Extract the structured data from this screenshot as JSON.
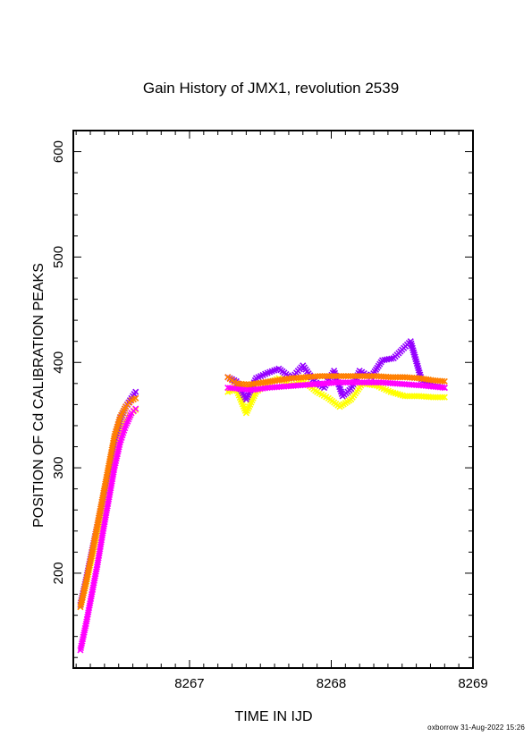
{
  "chart_data": {
    "type": "scatter",
    "title": "Gain History of JMX1, revolution 2539",
    "xlabel": "TIME IN IJD",
    "ylabel": "POSITION OF Cd CALIBRATION PEAKS",
    "xlim": [
      8266.18,
      8269.0
    ],
    "ylim": [
      110,
      620
    ],
    "xticks": [
      8267,
      8268,
      8269
    ],
    "xtick_labels": [
      "8267",
      "8268",
      "8269"
    ],
    "yticks": [
      200,
      300,
      400,
      500,
      600
    ],
    "ytick_labels": [
      "200",
      "300",
      "400",
      "500",
      "600"
    ],
    "grid": false,
    "legend": "none",
    "marker": "x",
    "series": [
      {
        "color": "#ffff00",
        "points": [
          [
            8266.23,
            168
          ],
          [
            8266.27,
            190
          ],
          [
            8266.31,
            214
          ],
          [
            8266.35,
            238
          ],
          [
            8266.39,
            262
          ],
          [
            8266.43,
            286
          ],
          [
            8266.47,
            312
          ],
          [
            8266.51,
            334
          ],
          [
            8266.55,
            346
          ],
          [
            8266.59,
            352
          ],
          [
            8266.62,
            355
          ],
          [
            8267.27,
            372
          ],
          [
            8267.33,
            375
          ],
          [
            8267.4,
            352
          ],
          [
            8267.47,
            372
          ],
          [
            8267.55,
            380
          ],
          [
            8267.63,
            385
          ],
          [
            8267.72,
            378
          ],
          [
            8267.8,
            383
          ],
          [
            8267.9,
            372
          ],
          [
            8267.98,
            366
          ],
          [
            8268.06,
            358
          ],
          [
            8268.14,
            365
          ],
          [
            8268.22,
            380
          ],
          [
            8268.32,
            378
          ],
          [
            8268.42,
            372
          ],
          [
            8268.52,
            368
          ],
          [
            8268.62,
            368
          ],
          [
            8268.72,
            367
          ],
          [
            8268.8,
            367
          ]
        ]
      },
      {
        "color": "#9400ff",
        "points": [
          [
            8266.23,
            170
          ],
          [
            8266.27,
            194
          ],
          [
            8266.31,
            220
          ],
          [
            8266.35,
            246
          ],
          [
            8266.39,
            272
          ],
          [
            8266.43,
            298
          ],
          [
            8266.47,
            326
          ],
          [
            8266.51,
            346
          ],
          [
            8266.55,
            358
          ],
          [
            8266.59,
            366
          ],
          [
            8266.62,
            372
          ],
          [
            8267.27,
            386
          ],
          [
            8267.33,
            382
          ],
          [
            8267.4,
            365
          ],
          [
            8267.47,
            385
          ],
          [
            8267.55,
            390
          ],
          [
            8267.63,
            394
          ],
          [
            8267.72,
            385
          ],
          [
            8267.8,
            397
          ],
          [
            8267.88,
            382
          ],
          [
            8267.95,
            376
          ],
          [
            8268.02,
            392
          ],
          [
            8268.08,
            368
          ],
          [
            8268.14,
            375
          ],
          [
            8268.2,
            392
          ],
          [
            8268.28,
            386
          ],
          [
            8268.36,
            402
          ],
          [
            8268.44,
            404
          ],
          [
            8268.5,
            412
          ],
          [
            8268.56,
            420
          ],
          [
            8268.64,
            382
          ],
          [
            8268.72,
            378
          ],
          [
            8268.8,
            376
          ]
        ]
      },
      {
        "color": "#ff00ff",
        "points": [
          [
            8266.23,
            127
          ],
          [
            8266.27,
            152
          ],
          [
            8266.31,
            180
          ],
          [
            8266.35,
            208
          ],
          [
            8266.39,
            240
          ],
          [
            8266.43,
            270
          ],
          [
            8266.47,
            300
          ],
          [
            8266.51,
            324
          ],
          [
            8266.55,
            340
          ],
          [
            8266.59,
            352
          ],
          [
            8266.62,
            356
          ],
          [
            8267.27,
            376
          ],
          [
            8267.35,
            375
          ],
          [
            8267.45,
            374
          ],
          [
            8267.55,
            376
          ],
          [
            8267.65,
            377
          ],
          [
            8267.75,
            378
          ],
          [
            8267.85,
            379
          ],
          [
            8267.95,
            380
          ],
          [
            8268.05,
            381
          ],
          [
            8268.15,
            381
          ],
          [
            8268.25,
            381
          ],
          [
            8268.35,
            381
          ],
          [
            8268.45,
            380
          ],
          [
            8268.55,
            379
          ],
          [
            8268.65,
            378
          ],
          [
            8268.72,
            377
          ],
          [
            8268.8,
            376
          ]
        ]
      },
      {
        "color": "#ff7f00",
        "points": [
          [
            8266.23,
            168
          ],
          [
            8266.27,
            192
          ],
          [
            8266.31,
            218
          ],
          [
            8266.35,
            246
          ],
          [
            8266.39,
            274
          ],
          [
            8266.43,
            302
          ],
          [
            8266.47,
            330
          ],
          [
            8266.51,
            348
          ],
          [
            8266.55,
            358
          ],
          [
            8266.59,
            364
          ],
          [
            8266.62,
            366
          ],
          [
            8267.27,
            386
          ],
          [
            8267.33,
            380
          ],
          [
            8267.42,
            379
          ],
          [
            8267.52,
            381
          ],
          [
            8267.62,
            383
          ],
          [
            8267.72,
            385
          ],
          [
            8267.82,
            386
          ],
          [
            8267.92,
            387
          ],
          [
            8268.02,
            387
          ],
          [
            8268.12,
            387
          ],
          [
            8268.22,
            387
          ],
          [
            8268.32,
            387
          ],
          [
            8268.42,
            386
          ],
          [
            8268.52,
            386
          ],
          [
            8268.62,
            385
          ],
          [
            8268.72,
            383
          ],
          [
            8268.8,
            382
          ]
        ]
      }
    ]
  },
  "footer": {
    "credit": "oxborrow 31-Aug-2022 15:26"
  }
}
